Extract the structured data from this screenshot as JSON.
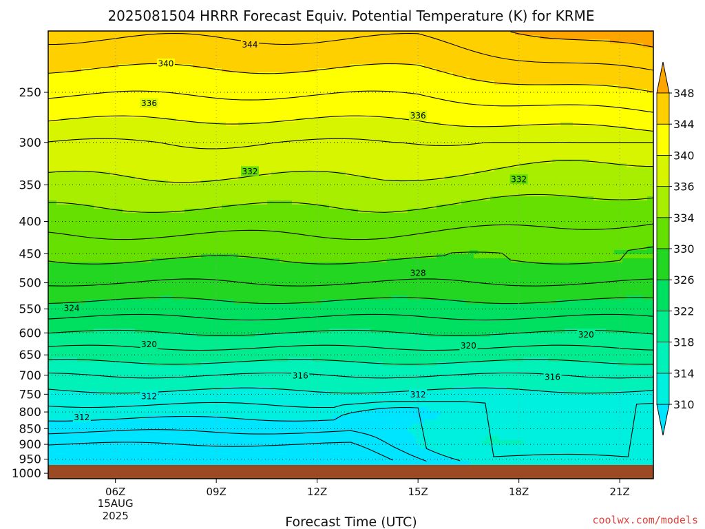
{
  "chart_data": {
    "type": "contour",
    "title": "2025081504 HRRR Forecast Equiv. Potential Temperature (K) for KRME",
    "xlabel": "Forecast Time (UTC)",
    "credit": "coolwx.com/models",
    "x_ticks": [
      {
        "hour": 6,
        "label": "06Z",
        "sublabels": [
          "15AUG",
          "2025"
        ]
      },
      {
        "hour": 9,
        "label": "09Z"
      },
      {
        "hour": 12,
        "label": "12Z"
      },
      {
        "hour": 15,
        "label": "15Z"
      },
      {
        "hour": 18,
        "label": "18Z"
      },
      {
        "hour": 21,
        "label": "21Z"
      }
    ],
    "xlim": [
      4,
      22
    ],
    "y_ticks": [
      250,
      300,
      350,
      400,
      450,
      500,
      550,
      600,
      650,
      700,
      750,
      800,
      850,
      900,
      950,
      1000
    ],
    "ylim_hPa": [
      200,
      1020
    ],
    "yscale": "log-pressure",
    "surface_pressure_hPa": 970,
    "contour_interval_K": 2,
    "colorbar": {
      "ticks": [
        310,
        314,
        318,
        322,
        326,
        330,
        334,
        336,
        340,
        344,
        348
      ],
      "bands": [
        {
          "from": 306,
          "to": 310,
          "color": "#00e5ff"
        },
        {
          "from": 310,
          "to": 314,
          "color": "#00f0e0"
        },
        {
          "from": 314,
          "to": 318,
          "color": "#00f2b8"
        },
        {
          "from": 318,
          "to": 322,
          "color": "#00ec8e"
        },
        {
          "from": 322,
          "to": 326,
          "color": "#00e060"
        },
        {
          "from": 326,
          "to": 330,
          "color": "#22d622"
        },
        {
          "from": 330,
          "to": 334,
          "color": "#66e000"
        },
        {
          "from": 334,
          "to": 336,
          "color": "#a8ee00"
        },
        {
          "from": 336,
          "to": 340,
          "color": "#d8f500"
        },
        {
          "from": 340,
          "to": 344,
          "color": "#ffff00"
        },
        {
          "from": 344,
          "to": 348,
          "color": "#ffd000"
        },
        {
          "from": 348,
          "to": 352,
          "color": "#ffa500"
        }
      ]
    },
    "contour_labels": [
      {
        "hour": 10.0,
        "p": 210,
        "value": "344"
      },
      {
        "hour": 7.5,
        "p": 225,
        "value": "340"
      },
      {
        "hour": 7.0,
        "p": 260,
        "value": "336"
      },
      {
        "hour": 15.0,
        "p": 272,
        "value": "336"
      },
      {
        "hour": 10.0,
        "p": 333,
        "value": "332"
      },
      {
        "hour": 18.0,
        "p": 343,
        "value": "332"
      },
      {
        "hour": 15.0,
        "p": 482,
        "value": "328"
      },
      {
        "hour": 4.7,
        "p": 548,
        "value": "324"
      },
      {
        "hour": 7.0,
        "p": 625,
        "value": "320"
      },
      {
        "hour": 16.5,
        "p": 628,
        "value": "320"
      },
      {
        "hour": 20.0,
        "p": 603,
        "value": "320"
      },
      {
        "hour": 11.5,
        "p": 700,
        "value": "316"
      },
      {
        "hour": 19.0,
        "p": 704,
        "value": "316"
      },
      {
        "hour": 7.0,
        "p": 755,
        "value": "312"
      },
      {
        "hour": 15.0,
        "p": 750,
        "value": "312"
      },
      {
        "hour": 5.0,
        "p": 815,
        "value": "312"
      }
    ]
  }
}
